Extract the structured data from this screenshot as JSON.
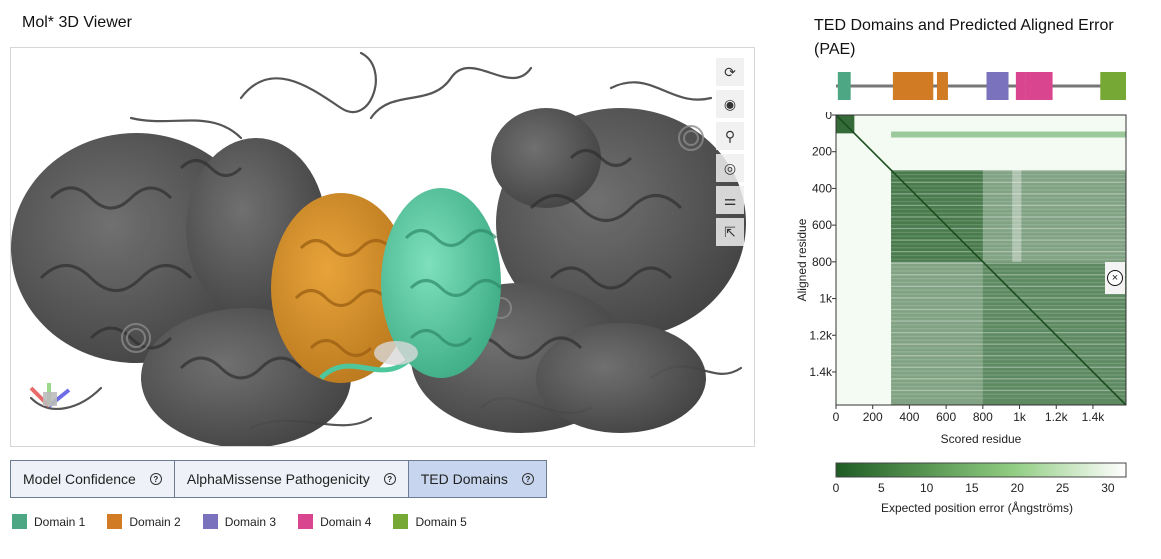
{
  "viewer": {
    "title": "Mol* 3D Viewer",
    "controls": [
      {
        "name": "reset-camera-icon",
        "glyph": "⟳"
      },
      {
        "name": "screenshot-icon",
        "glyph": "◉"
      },
      {
        "name": "zoom-icon",
        "glyph": "⚲"
      },
      {
        "name": "animation-icon",
        "glyph": "◎"
      },
      {
        "name": "settings-icon",
        "glyph": "⚌"
      },
      {
        "name": "selection-icon",
        "glyph": "⇱"
      }
    ]
  },
  "tabs": [
    {
      "label": "Model Confidence",
      "help": "?",
      "active": false
    },
    {
      "label": "AlphaMissense Pathogenicity",
      "help": "?",
      "active": false
    },
    {
      "label": "TED Domains",
      "help": "?",
      "active": true
    }
  ],
  "legend": [
    {
      "label": "Domain 1",
      "color": "#4ea784"
    },
    {
      "label": "Domain 2",
      "color": "#d27b25"
    },
    {
      "label": "Domain 3",
      "color": "#7a72bd"
    },
    {
      "label": "Domain 4",
      "color": "#d9468f"
    },
    {
      "label": "Domain 5",
      "color": "#75a834"
    }
  ],
  "pae": {
    "title": "TED Domains and Predicted Aligned Error (PAE)",
    "x_label": "Scored residue",
    "y_label": "Aligned residue",
    "x_ticks": [
      "0",
      "200",
      "400",
      "600",
      "800",
      "1k",
      "1.2k",
      "1.4k"
    ],
    "y_ticks": [
      "0",
      "200",
      "400",
      "600",
      "800",
      "1k",
      "1.2k",
      "1.4k"
    ],
    "scale_ticks": [
      "0",
      "5",
      "10",
      "15",
      "20",
      "25",
      "30"
    ],
    "scale_label": "Expected position error (Ångströms)",
    "close_glyph": "×",
    "residue_max": 1580,
    "domains": [
      {
        "start": 10,
        "end": 80,
        "color": "#4ea784"
      },
      {
        "start": 310,
        "end": 530,
        "color": "#d27b25"
      },
      {
        "start": 550,
        "end": 610,
        "color": "#d27b25"
      },
      {
        "start": 820,
        "end": 940,
        "color": "#7a72bd"
      },
      {
        "start": 980,
        "end": 1030,
        "color": "#d9468f"
      },
      {
        "start": 1030,
        "end": 1180,
        "color": "#d9468f"
      },
      {
        "start": 1440,
        "end": 1580,
        "color": "#75a834"
      }
    ]
  },
  "chart_data": {
    "type": "heatmap",
    "title": "TED Domains and Predicted Aligned Error (PAE)",
    "xlabel": "Scored residue",
    "ylabel": "Aligned residue",
    "xlim": [
      0,
      1580
    ],
    "ylim": [
      0,
      1580
    ],
    "color_scale": {
      "min": 0,
      "max": 32,
      "low_color": "#1f5c24",
      "high_color": "#ffffff"
    },
    "low_error_blocks": [
      {
        "x": [
          0,
          100
        ],
        "y": [
          0,
          100
        ],
        "value": 3
      },
      {
        "x": [
          300,
          800
        ],
        "y": [
          300,
          800
        ],
        "value": 6
      },
      {
        "x": [
          300,
          1580
        ],
        "y": [
          300,
          1580
        ],
        "value": 14
      },
      {
        "x": [
          800,
          1580
        ],
        "y": [
          800,
          1580
        ],
        "value": 9
      }
    ]
  }
}
